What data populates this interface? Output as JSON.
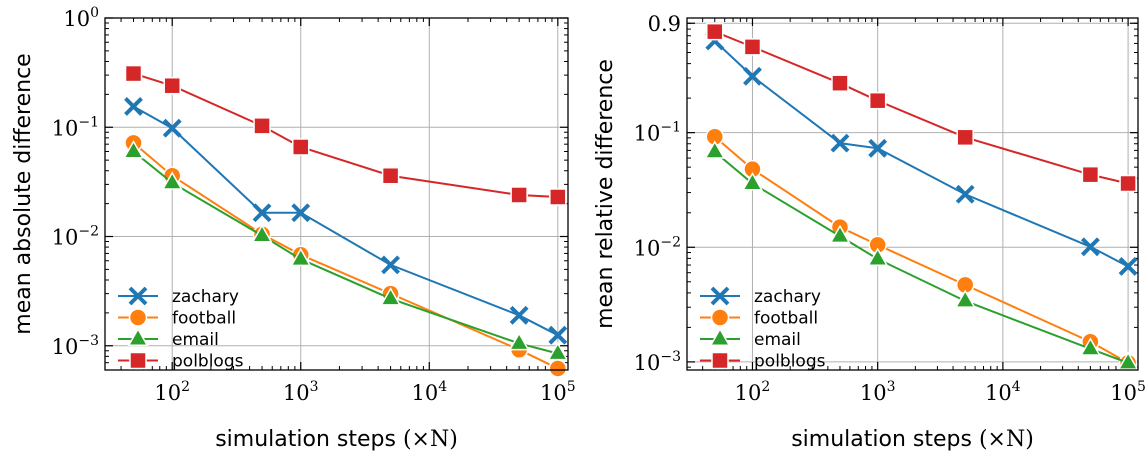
{
  "chart_data": [
    {
      "type": "line",
      "title": "",
      "xlabel": "simulation steps",
      "xlabel_math": "(×N)",
      "ylabel": "mean absolute difference",
      "xscale": "log",
      "yscale": "log",
      "xlim": [
        30,
        120000
      ],
      "ylim": [
        0.0006,
        1
      ],
      "grid": true,
      "legend_position": "lower-left",
      "x_ticks": [
        {
          "base": "10",
          "exp": "2"
        },
        {
          "base": "10",
          "exp": "3"
        },
        {
          "base": "10",
          "exp": "4"
        },
        {
          "base": "10",
          "exp": "5"
        }
      ],
      "y_ticks": [
        {
          "base": "10",
          "exp": "−3"
        },
        {
          "base": "10",
          "exp": "−2"
        },
        {
          "base": "10",
          "exp": "−1"
        },
        {
          "base": "10",
          "exp": "0"
        }
      ],
      "x": [
        50,
        100,
        500,
        1000,
        5000,
        50000,
        100000
      ],
      "series": [
        {
          "name": "zachary",
          "color": "#1f77b4",
          "marker": "x",
          "values": [
            0.155,
            0.098,
            0.0165,
            0.0165,
            0.0055,
            0.0019,
            0.00125
          ]
        },
        {
          "name": "football",
          "color": "#ff7f0e",
          "marker": "circle",
          "values": [
            0.072,
            0.036,
            0.0105,
            0.0068,
            0.003,
            0.00092,
            0.00062
          ]
        },
        {
          "name": "email",
          "color": "#2ca02c",
          "marker": "triangle",
          "values": [
            0.06,
            0.031,
            0.0102,
            0.0062,
            0.0027,
            0.00105,
            0.00085
          ]
        },
        {
          "name": "polblogs",
          "color": "#d62728",
          "marker": "square",
          "values": [
            0.31,
            0.24,
            0.103,
            0.066,
            0.036,
            0.024,
            0.023
          ]
        }
      ]
    },
    {
      "type": "line",
      "title": "",
      "xlabel": "simulation steps",
      "xlabel_math": "(×N)",
      "ylabel": "mean relative difference",
      "xscale": "log",
      "yscale": "log",
      "xlim": [
        30,
        120000
      ],
      "ylim": [
        0.00085,
        1.0
      ],
      "grid": true,
      "legend_position": "lower-left",
      "x_ticks": [
        {
          "base": "10",
          "exp": "2"
        },
        {
          "base": "10",
          "exp": "3"
        },
        {
          "base": "10",
          "exp": "4"
        },
        {
          "base": "10",
          "exp": "5"
        }
      ],
      "y_ticks": [
        {
          "base": "10",
          "exp": "−3"
        },
        {
          "base": "10",
          "exp": "−2"
        },
        {
          "base": "10",
          "exp": "−1"
        },
        {
          "base": "0.9",
          "exp": ""
        }
      ],
      "x": [
        50,
        100,
        500,
        1000,
        5000,
        50000,
        100000
      ],
      "series": [
        {
          "name": "zachary",
          "color": "#1f77b4",
          "marker": "x",
          "values": [
            0.63,
            0.31,
            0.081,
            0.073,
            0.029,
            0.0101,
            0.0068
          ]
        },
        {
          "name": "football",
          "color": "#ff7f0e",
          "marker": "circle",
          "values": [
            0.092,
            0.048,
            0.015,
            0.0105,
            0.0047,
            0.0015,
            0.00098
          ]
        },
        {
          "name": "email",
          "color": "#2ca02c",
          "marker": "triangle",
          "values": [
            0.068,
            0.036,
            0.0125,
            0.0079,
            0.0034,
            0.0013,
            0.00098
          ]
        },
        {
          "name": "polblogs",
          "color": "#d62728",
          "marker": "square",
          "values": [
            0.76,
            0.56,
            0.27,
            0.19,
            0.091,
            0.043,
            0.036
          ]
        }
      ]
    }
  ]
}
